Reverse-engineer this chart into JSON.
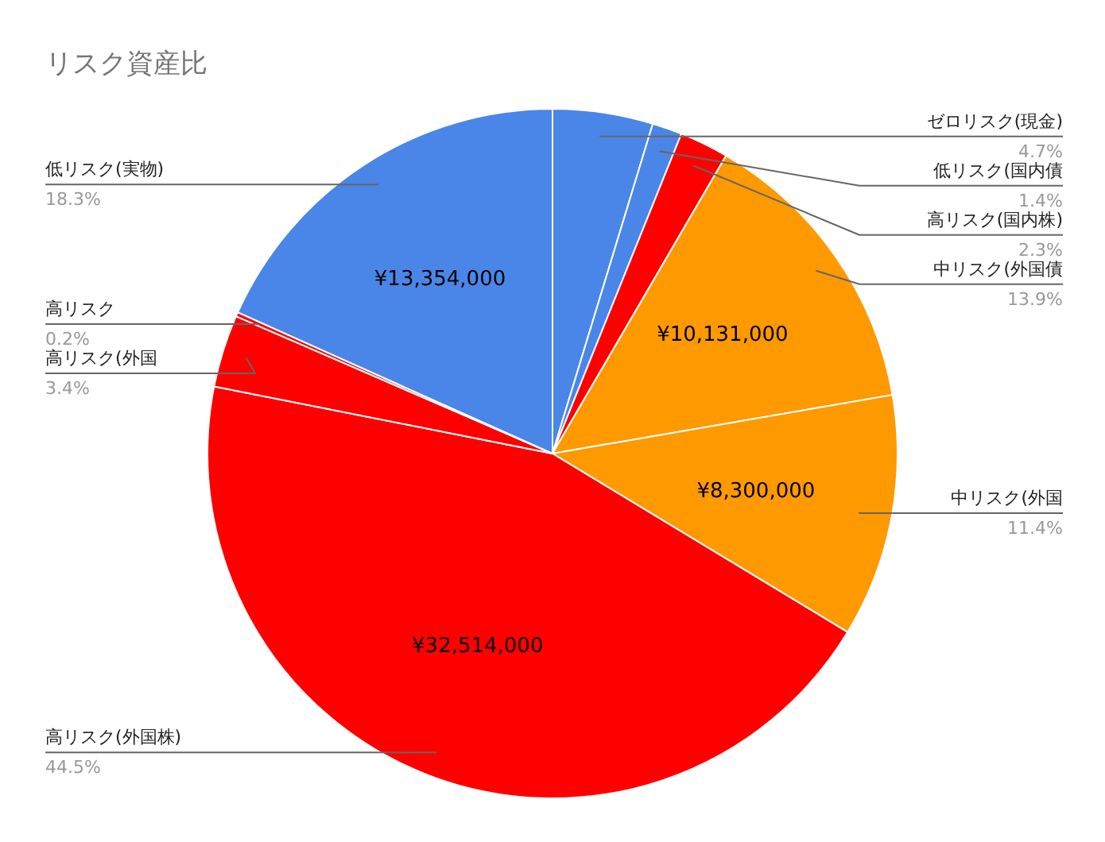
{
  "chart_data": {
    "type": "pie",
    "title": "リスク資産比",
    "categories": [
      "ゼロリスク(現金)",
      "低リスク(国内債",
      "高リスク(国内株)",
      "中リスク(外国債",
      "中リスク(外国",
      "高リスク(外国株)",
      "高リスク(外国",
      "高リスク",
      "低リスク(実物)"
    ],
    "values": [
      4.7,
      1.4,
      2.3,
      13.9,
      11.4,
      44.5,
      3.4,
      0.2,
      18.3
    ],
    "colors": [
      "#4a86e8",
      "#4a86e8",
      "#ff0000",
      "#ff9900",
      "#ff9900",
      "#ff0000",
      "#ff0000",
      "#ff0000",
      "#4a86e8"
    ],
    "value_labels": [
      "4.7%",
      "1.4%",
      "2.3%",
      "13.9%",
      "11.4%",
      "44.5%",
      "3.4%",
      "0.2%",
      "18.3%"
    ],
    "annotations": [
      {
        "text": "¥10,131,000",
        "x": "中リスク(外国債"
      },
      {
        "text": "¥8,300,000",
        "x": "中リスク(外国"
      },
      {
        "text": "¥32,514,000",
        "x": "高リスク(外国株)"
      },
      {
        "text": "¥13,354,000",
        "x": "低リスク(実物)"
      }
    ]
  }
}
